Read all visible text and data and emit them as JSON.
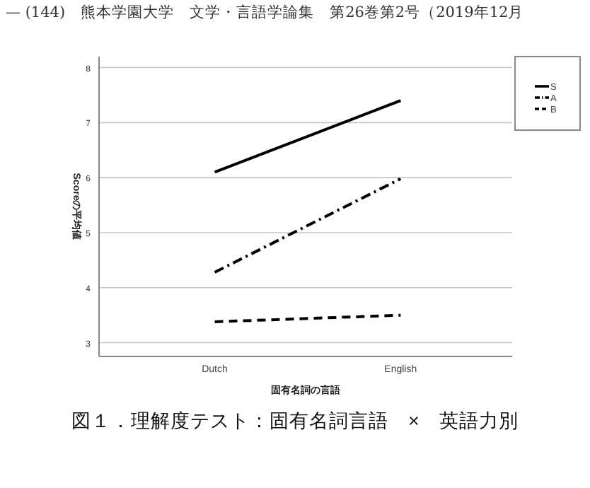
{
  "chart_data": {
    "type": "line",
    "title": "図１．理解度テスト：固有名詞言語　×　英語力別",
    "annotations": [
      "— (144)　熊本学園大学　文学・言語学論集　第26巻第2号（2019年12月"
    ],
    "xlabel": "固有名詞の言語",
    "ylabel": "Scoreの平均値",
    "categories": [
      "Dutch",
      "English"
    ],
    "series": [
      {
        "name": "S",
        "color": "#000000",
        "line_style": "solid",
        "values": [
          6.1,
          7.4
        ]
      },
      {
        "name": "A",
        "color": "#000000",
        "line_style": "dashdot",
        "values": [
          4.28,
          5.98
        ]
      },
      {
        "name": "B",
        "color": "#000000",
        "line_style": "dashed",
        "values": [
          3.38,
          3.5
        ]
      }
    ],
    "ylim": [
      2.75,
      8.2
    ],
    "yticks": [
      3,
      4,
      5,
      6,
      7,
      8
    ],
    "grid": "y",
    "legend": "top right"
  }
}
